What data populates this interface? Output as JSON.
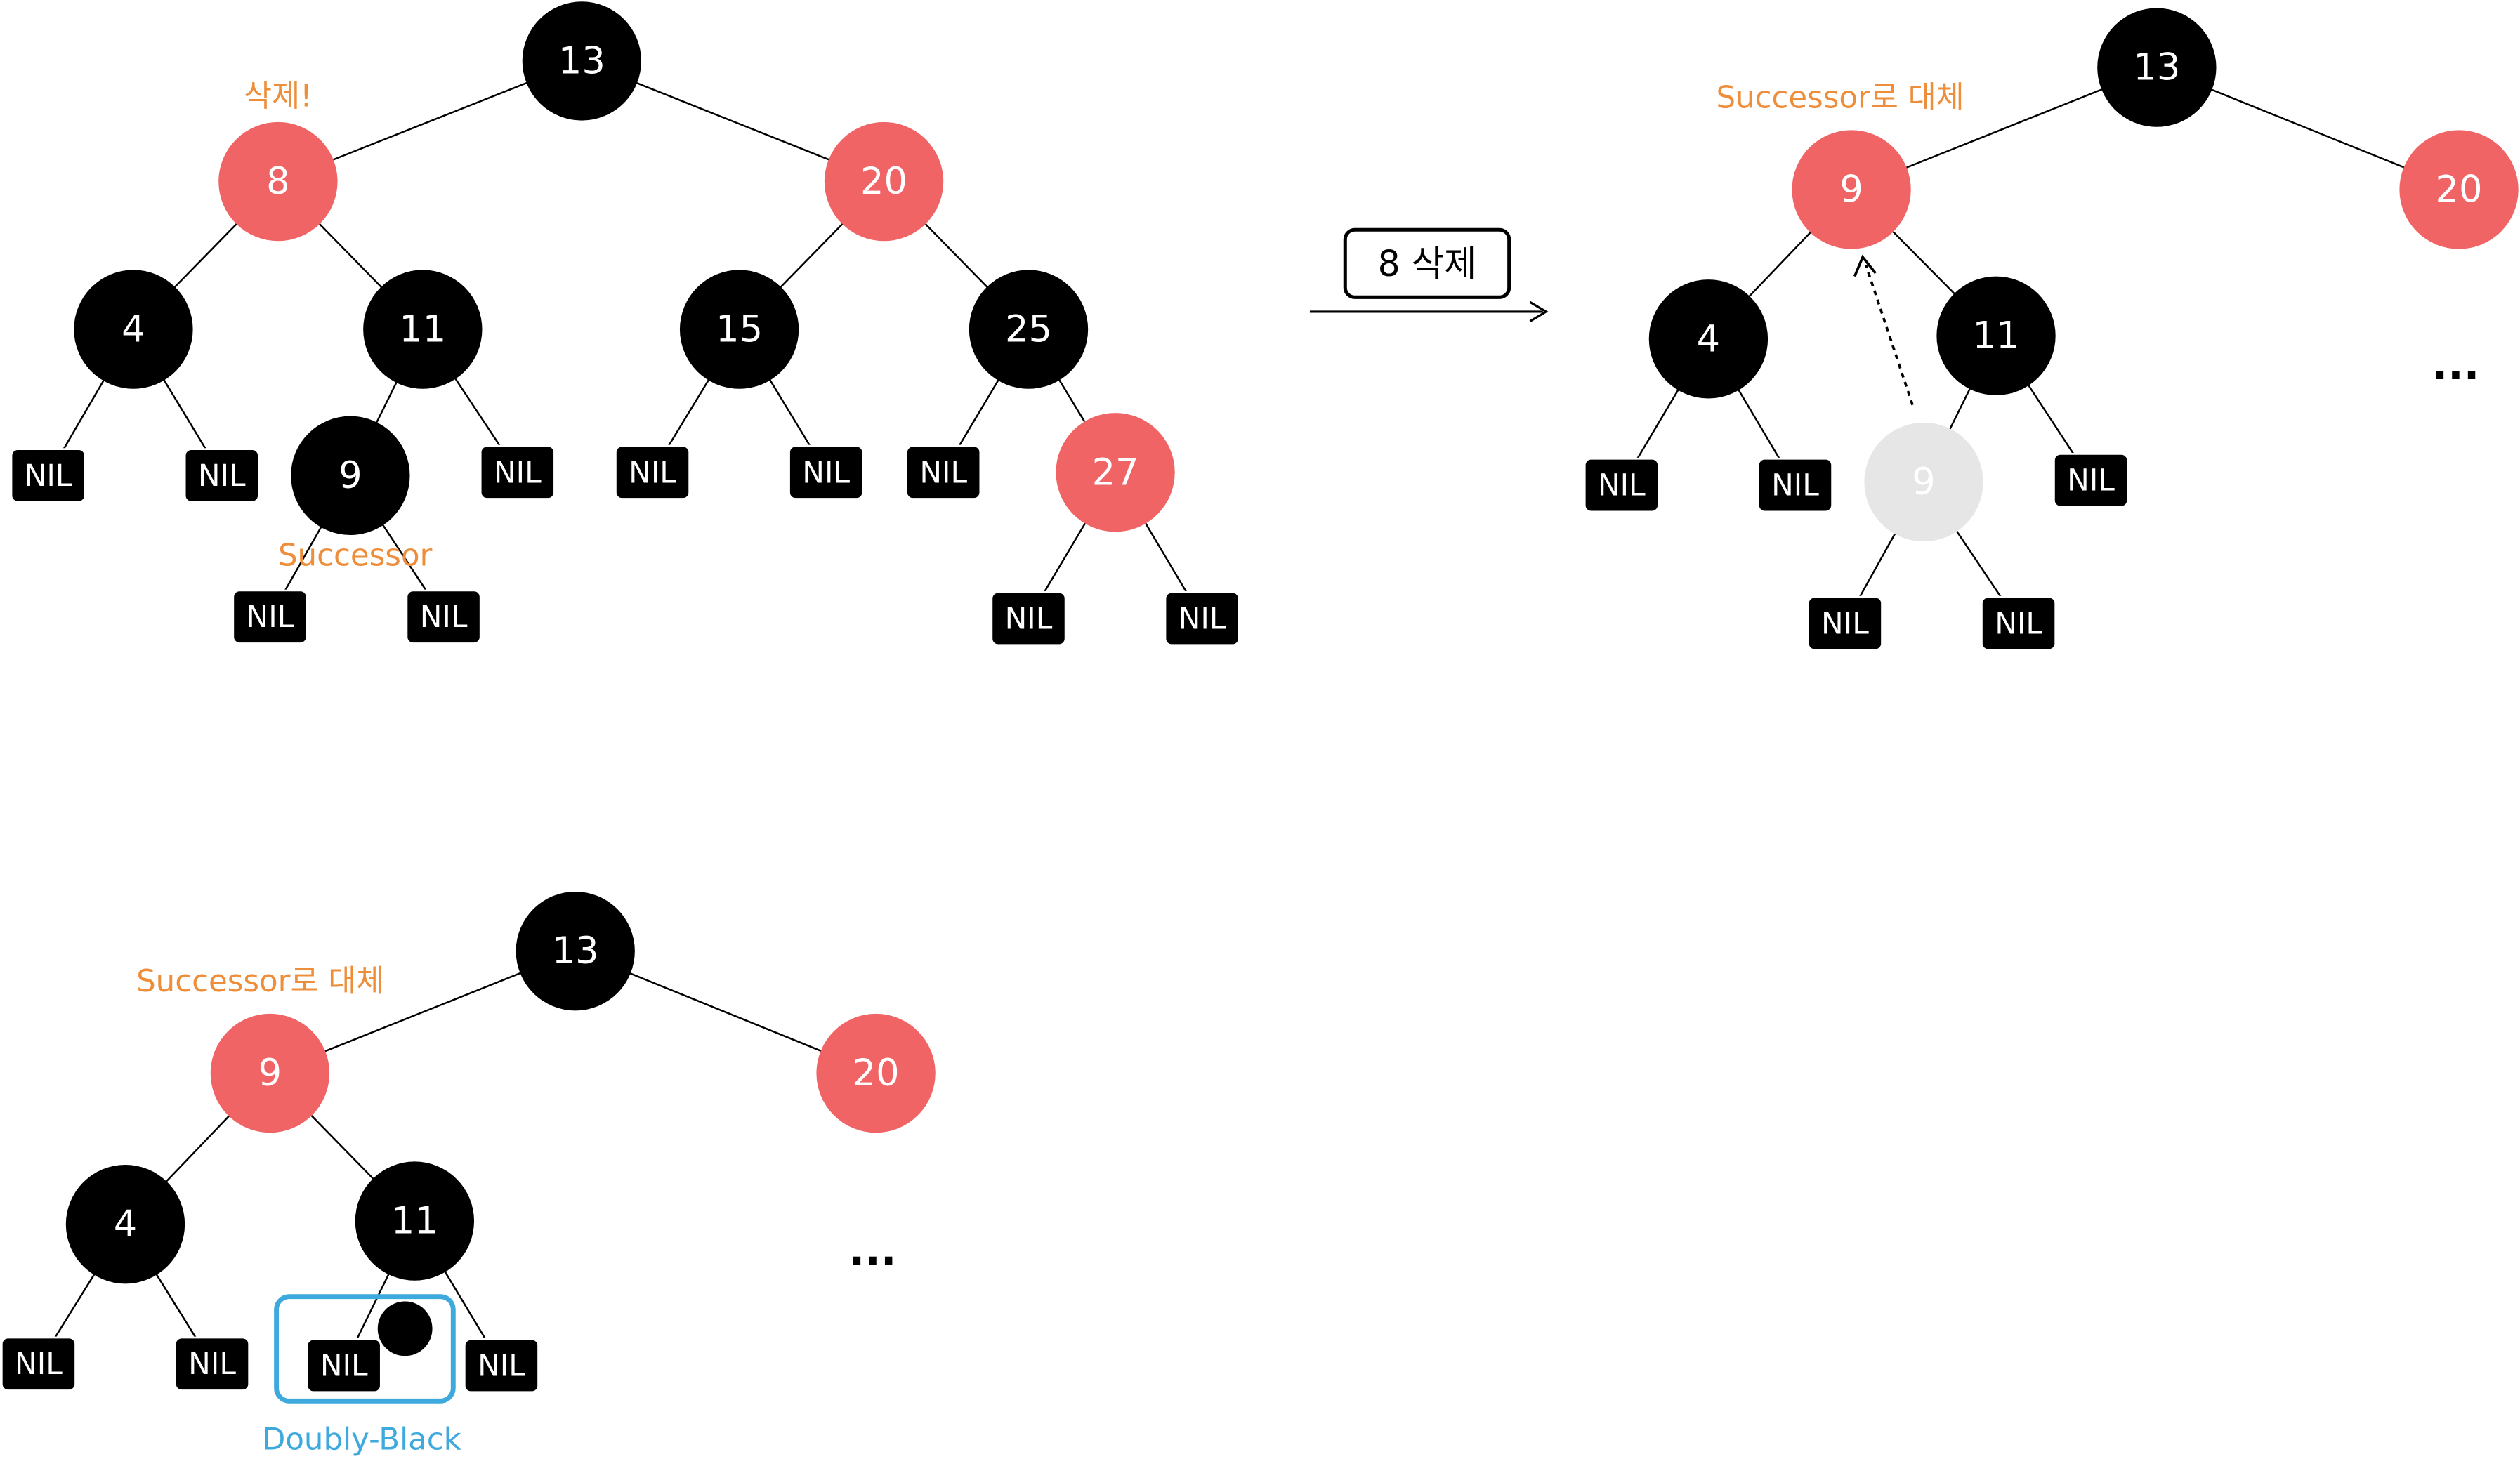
{
  "colors": {
    "black_node": "#000000",
    "red_node": "#f06466",
    "ghost_node": "#e6e6e6",
    "annotation_orange": "#ee8e3a",
    "annotation_blue": "#3ea9dc",
    "node_text": "#ffffff",
    "edge": "#000000"
  },
  "step_arrow": {
    "label": "8 삭제"
  },
  "ellipsis": "...",
  "panels": [
    {
      "id": "before",
      "nodes": [
        {
          "id": "n13",
          "type": "black",
          "label": "13"
        },
        {
          "id": "n8",
          "type": "red",
          "label": "8"
        },
        {
          "id": "n20",
          "type": "red",
          "label": "20"
        },
        {
          "id": "n4",
          "type": "black",
          "label": "4"
        },
        {
          "id": "n11",
          "type": "black",
          "label": "11"
        },
        {
          "id": "n15",
          "type": "black",
          "label": "15"
        },
        {
          "id": "n25",
          "type": "black",
          "label": "25"
        },
        {
          "id": "nil1",
          "type": "nil",
          "label": "NIL"
        },
        {
          "id": "nil2",
          "type": "nil",
          "label": "NIL"
        },
        {
          "id": "n9",
          "type": "black",
          "label": "9"
        },
        {
          "id": "nil3",
          "type": "nil",
          "label": "NIL"
        },
        {
          "id": "nil4",
          "type": "nil",
          "label": "NIL"
        },
        {
          "id": "nil5",
          "type": "nil",
          "label": "NIL"
        },
        {
          "id": "nil6",
          "type": "nil",
          "label": "NIL"
        },
        {
          "id": "n27",
          "type": "red",
          "label": "27"
        },
        {
          "id": "nil7",
          "type": "nil",
          "label": "NIL"
        },
        {
          "id": "nil8",
          "type": "nil",
          "label": "NIL"
        },
        {
          "id": "nil9",
          "type": "nil",
          "label": "NIL"
        },
        {
          "id": "nil10",
          "type": "nil",
          "label": "NIL"
        }
      ],
      "edges": [
        [
          "n13",
          "n8"
        ],
        [
          "n13",
          "n20"
        ],
        [
          "n8",
          "n4"
        ],
        [
          "n8",
          "n11"
        ],
        [
          "n20",
          "n15"
        ],
        [
          "n20",
          "n25"
        ],
        [
          "n4",
          "nil1"
        ],
        [
          "n4",
          "nil2"
        ],
        [
          "n11",
          "n9"
        ],
        [
          "n11",
          "nil3"
        ],
        [
          "n15",
          "nil4"
        ],
        [
          "n15",
          "nil5"
        ],
        [
          "n25",
          "nil6"
        ],
        [
          "n25",
          "n27"
        ],
        [
          "n9",
          "nil7"
        ],
        [
          "n9",
          "nil8"
        ],
        [
          "n27",
          "nil9"
        ],
        [
          "n27",
          "nil10"
        ]
      ],
      "annotations": [
        {
          "id": "delete-label",
          "text": "삭제!",
          "color": "orange"
        },
        {
          "id": "successor-label",
          "text": "Successor",
          "color": "orange"
        }
      ]
    },
    {
      "id": "after-replace",
      "nodes": [
        {
          "id": "n13",
          "type": "black",
          "label": "13"
        },
        {
          "id": "n9",
          "type": "red",
          "label": "9"
        },
        {
          "id": "n20",
          "type": "red",
          "label": "20"
        },
        {
          "id": "n4",
          "type": "black",
          "label": "4"
        },
        {
          "id": "n11",
          "type": "black",
          "label": "11"
        },
        {
          "id": "nil1",
          "type": "nil",
          "label": "NIL"
        },
        {
          "id": "nil2",
          "type": "nil",
          "label": "NIL"
        },
        {
          "id": "ghost9",
          "type": "ghost",
          "label": "9"
        },
        {
          "id": "nil3",
          "type": "nil",
          "label": "NIL"
        },
        {
          "id": "nil4",
          "type": "nil",
          "label": "NIL"
        },
        {
          "id": "nil5",
          "type": "nil",
          "label": "NIL"
        }
      ],
      "edges": [
        [
          "n13",
          "n9"
        ],
        [
          "n13",
          "n20"
        ],
        [
          "n9",
          "n4"
        ],
        [
          "n9",
          "n11"
        ],
        [
          "n4",
          "nil1"
        ],
        [
          "n4",
          "nil2"
        ],
        [
          "n11",
          "ghost9"
        ],
        [
          "n11",
          "nil3"
        ],
        [
          "ghost9",
          "nil4"
        ],
        [
          "ghost9",
          "nil5"
        ]
      ],
      "annotations": [
        {
          "id": "replace-label",
          "text": "Successor로 대체",
          "color": "orange"
        }
      ]
    },
    {
      "id": "doubly-black",
      "nodes": [
        {
          "id": "n13",
          "type": "black",
          "label": "13"
        },
        {
          "id": "n9",
          "type": "red",
          "label": "9"
        },
        {
          "id": "n20",
          "type": "red",
          "label": "20"
        },
        {
          "id": "n4",
          "type": "black",
          "label": "4"
        },
        {
          "id": "n11",
          "type": "black",
          "label": "11"
        },
        {
          "id": "nil1",
          "type": "nil",
          "label": "NIL"
        },
        {
          "id": "nil2",
          "type": "nil",
          "label": "NIL"
        },
        {
          "id": "nil3",
          "type": "nil",
          "label": "NIL"
        },
        {
          "id": "nil4",
          "type": "nil",
          "label": "NIL"
        }
      ],
      "edges": [
        [
          "n13",
          "n9"
        ],
        [
          "n13",
          "n20"
        ],
        [
          "n9",
          "n4"
        ],
        [
          "n9",
          "n11"
        ],
        [
          "n4",
          "nil1"
        ],
        [
          "n4",
          "nil2"
        ],
        [
          "n11",
          "nil3"
        ],
        [
          "n11",
          "nil4"
        ]
      ],
      "annotations": [
        {
          "id": "replace-label",
          "text": "Successor로 대체",
          "color": "orange"
        },
        {
          "id": "doubly-black-label",
          "text": "Doubly-Black",
          "color": "blue"
        }
      ]
    }
  ]
}
